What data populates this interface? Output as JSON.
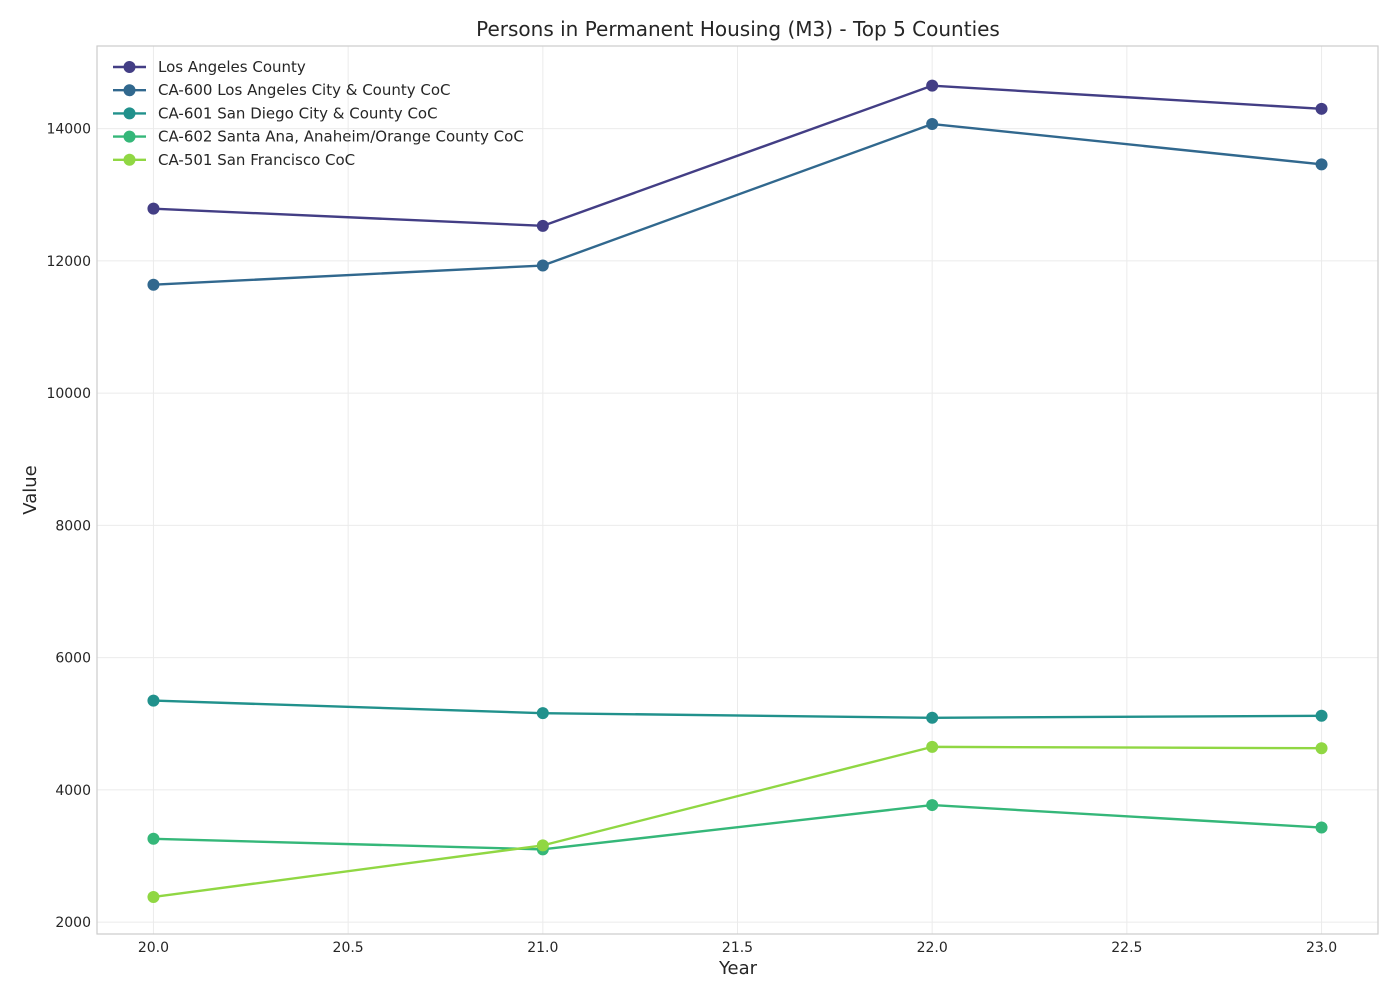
{
  "chart_data": {
    "type": "line",
    "title": "Persons in Permanent Housing (M3) - Top 5 Counties",
    "xlabel": "Year",
    "ylabel": "Value",
    "xlim": [
      19.855,
      23.145
    ],
    "ylim": [
      1820,
      15250
    ],
    "x_ticks": [
      20.0,
      20.5,
      21.0,
      21.5,
      22.0,
      22.5,
      23.0
    ],
    "x_tick_labels": [
      "20.0",
      "20.5",
      "21.0",
      "21.5",
      "22.0",
      "22.5",
      "23.0"
    ],
    "y_ticks": [
      2000,
      4000,
      6000,
      8000,
      10000,
      12000,
      14000
    ],
    "y_tick_labels": [
      "2000",
      "4000",
      "6000",
      "8000",
      "10000",
      "12000",
      "14000"
    ],
    "grid": true,
    "legend_position": "top-left",
    "x": [
      20,
      21,
      22,
      23
    ],
    "series": [
      {
        "name": "Los Angeles County",
        "color": "#433e85",
        "values": [
          12790,
          12530,
          14650,
          14300
        ]
      },
      {
        "name": "CA-600 Los Angeles City & County CoC",
        "color": "#31688e",
        "values": [
          11640,
          11930,
          14070,
          13460
        ]
      },
      {
        "name": "CA-601 San Diego City & County CoC",
        "color": "#21918c",
        "values": [
          5350,
          5160,
          5090,
          5120
        ]
      },
      {
        "name": "CA-602 Santa Ana, Anaheim/Orange County CoC",
        "color": "#35b779",
        "values": [
          3260,
          3100,
          3770,
          3430
        ]
      },
      {
        "name": "CA-501 San Francisco CoC",
        "color": "#90d743",
        "values": [
          2380,
          3160,
          4650,
          4630
        ]
      }
    ]
  }
}
